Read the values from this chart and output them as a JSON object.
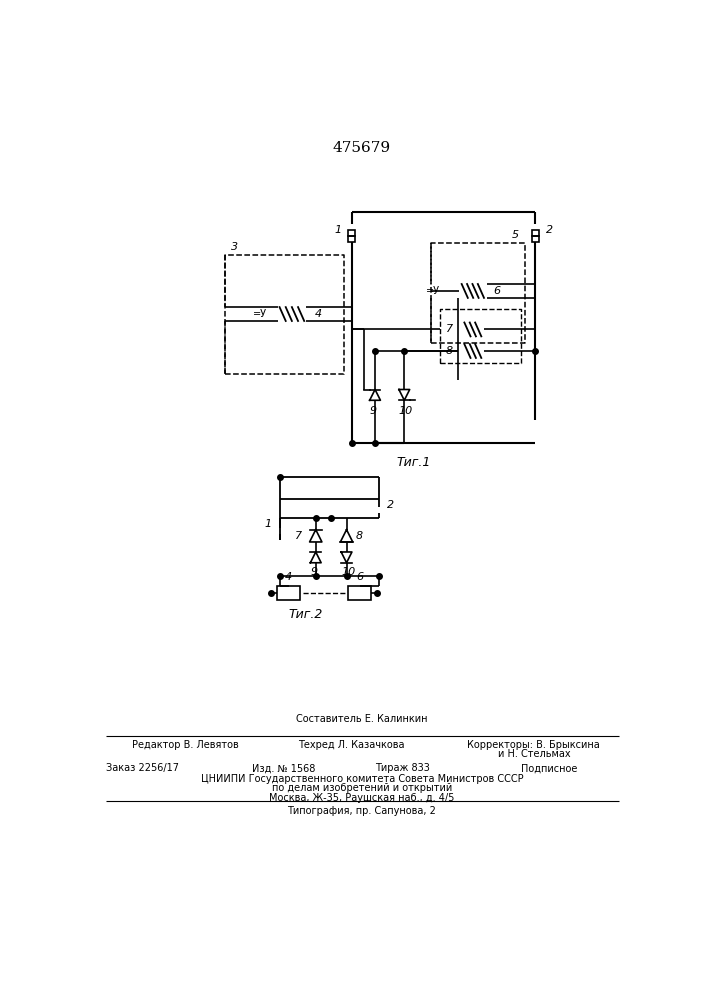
{
  "title_text": "475679",
  "fig1_label": "Τиг.1",
  "fig2_label": "Τиг.2",
  "bg_color": "#ffffff",
  "line_color": "#000000",
  "font_size_title": 11,
  "font_size_label": 9,
  "font_size_num": 8,
  "font_size_footer": 7
}
